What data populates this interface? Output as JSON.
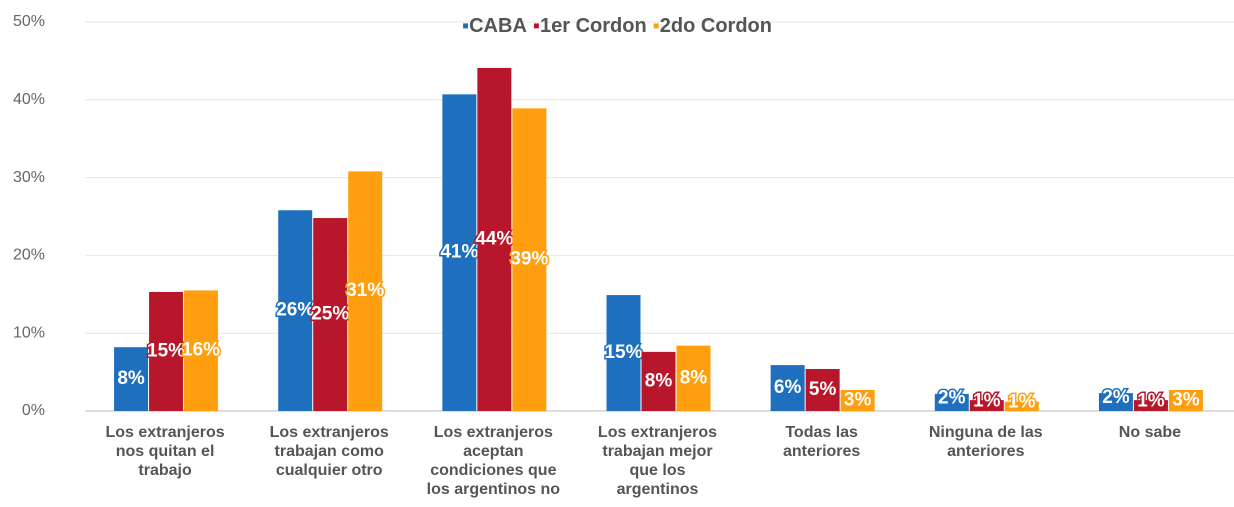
{
  "chart_data": {
    "type": "bar",
    "categories": [
      "Los extranjeros nos quitan el trabajo",
      "Los extranjeros trabajan como cualquier otro",
      "Los extranjeros aceptan condiciones que los argentinos no",
      "Los extranjeros trabajan mejor que los argentinos",
      "Todas las anteriores",
      "Ninguna de las anteriores",
      "No sabe"
    ],
    "series": [
      {
        "name": "CABA",
        "color": "#1f6fbf",
        "values": [
          8.2,
          25.8,
          40.7,
          14.9,
          5.9,
          2.2,
          2.3
        ],
        "value_labels": [
          "8%",
          "26%",
          "41%",
          "15%",
          "6%",
          "2%",
          "2%"
        ]
      },
      {
        "name": "1er Cordon",
        "color": "#b8162a",
        "values": [
          15.3,
          24.8,
          44.1,
          7.6,
          5.4,
          1.4,
          1.4
        ],
        "value_labels": [
          "15%",
          "25%",
          "44%",
          "8%",
          "5%",
          "1%",
          "1%"
        ]
      },
      {
        "name": "2do Cordon",
        "color": "#ff9f0f",
        "values": [
          15.5,
          30.8,
          38.9,
          8.4,
          2.7,
          1.2,
          2.7
        ],
        "value_labels": [
          "16%",
          "31%",
          "39%",
          "8%",
          "3%",
          "1%",
          "3%"
        ]
      }
    ],
    "ylim": [
      0,
      50
    ],
    "yticks": [
      {
        "value": 0,
        "label": "0%"
      },
      {
        "value": 10,
        "label": "10%"
      },
      {
        "value": 20,
        "label": "20%"
      },
      {
        "value": 30,
        "label": "30%"
      },
      {
        "value": 40,
        "label": "40%"
      },
      {
        "value": 50,
        "label": "50%"
      }
    ],
    "grid": true,
    "legend": "top"
  }
}
